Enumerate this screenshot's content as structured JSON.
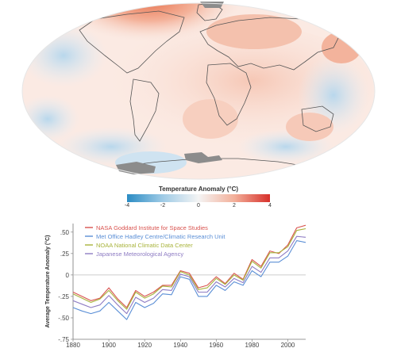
{
  "map": {
    "colorbar_title": "Temperature Anomaly (°C)",
    "colorbar_ticks": [
      "-4",
      "-2",
      "0",
      "2",
      "4"
    ],
    "colorbar_colors": [
      "#2b8cc4",
      "#9fcbe6",
      "#f4f4f4",
      "#f3b09a",
      "#d7302b"
    ]
  },
  "chart_data": {
    "type": "line",
    "title": "",
    "xlabel": "",
    "ylabel": "Average Temperature Anomaly (°C)",
    "xlim": [
      1880,
      2010
    ],
    "ylim": [
      -0.75,
      0.6
    ],
    "x_ticks": [
      "1880",
      "1900",
      "1920",
      "1940",
      "1960",
      "1980",
      "2000"
    ],
    "y_ticks": [
      "-.75",
      "-.50",
      "-.25",
      "0",
      ".25",
      ".50"
    ],
    "zero_line_color": "#bbbbbb",
    "x": [
      1880,
      1885,
      1890,
      1895,
      1900,
      1905,
      1910,
      1915,
      1920,
      1925,
      1930,
      1935,
      1940,
      1945,
      1950,
      1955,
      1960,
      1965,
      1970,
      1975,
      1980,
      1985,
      1990,
      1995,
      2000,
      2005,
      2010
    ],
    "series": [
      {
        "name": "NASA Goddard Institute for Space Studies",
        "color": "#d9534f",
        "values": [
          -0.2,
          -0.25,
          -0.3,
          -0.27,
          -0.15,
          -0.28,
          -0.38,
          -0.18,
          -0.25,
          -0.2,
          -0.12,
          -0.12,
          0.05,
          0.02,
          -0.15,
          -0.12,
          -0.02,
          -0.1,
          0.02,
          -0.05,
          0.18,
          0.1,
          0.28,
          0.25,
          0.35,
          0.55,
          0.58
        ]
      },
      {
        "name": "Met Office Hadley Centre/Climatic Research Unit",
        "color": "#5b8fd6",
        "values": [
          -0.38,
          -0.42,
          -0.45,
          -0.42,
          -0.32,
          -0.42,
          -0.52,
          -0.32,
          -0.38,
          -0.33,
          -0.22,
          -0.23,
          -0.02,
          -0.05,
          -0.25,
          -0.25,
          -0.12,
          -0.18,
          -0.08,
          -0.12,
          0.05,
          -0.02,
          0.15,
          0.15,
          0.22,
          0.4,
          0.38
        ]
      },
      {
        "name": "NOAA National Climatic Data Center",
        "color": "#a8b33b",
        "values": [
          -0.22,
          -0.27,
          -0.32,
          -0.28,
          -0.18,
          -0.3,
          -0.4,
          -0.2,
          -0.27,
          -0.22,
          -0.13,
          -0.14,
          0.04,
          0.0,
          -0.17,
          -0.15,
          -0.04,
          -0.11,
          0.0,
          -0.06,
          0.16,
          0.08,
          0.26,
          0.26,
          0.33,
          0.52,
          0.54
        ]
      },
      {
        "name": "Japanese Meteorological Agency",
        "color": "#8e7cc3",
        "values": [
          -0.3,
          -0.34,
          -0.38,
          -0.35,
          -0.24,
          -0.35,
          -0.45,
          -0.26,
          -0.32,
          -0.27,
          -0.17,
          -0.18,
          0.01,
          -0.02,
          -0.2,
          -0.2,
          -0.08,
          -0.14,
          -0.04,
          -0.09,
          0.1,
          0.03,
          0.2,
          0.2,
          0.28,
          0.45,
          0.44
        ]
      }
    ],
    "legend_position": "top-left",
    "grid": false
  }
}
